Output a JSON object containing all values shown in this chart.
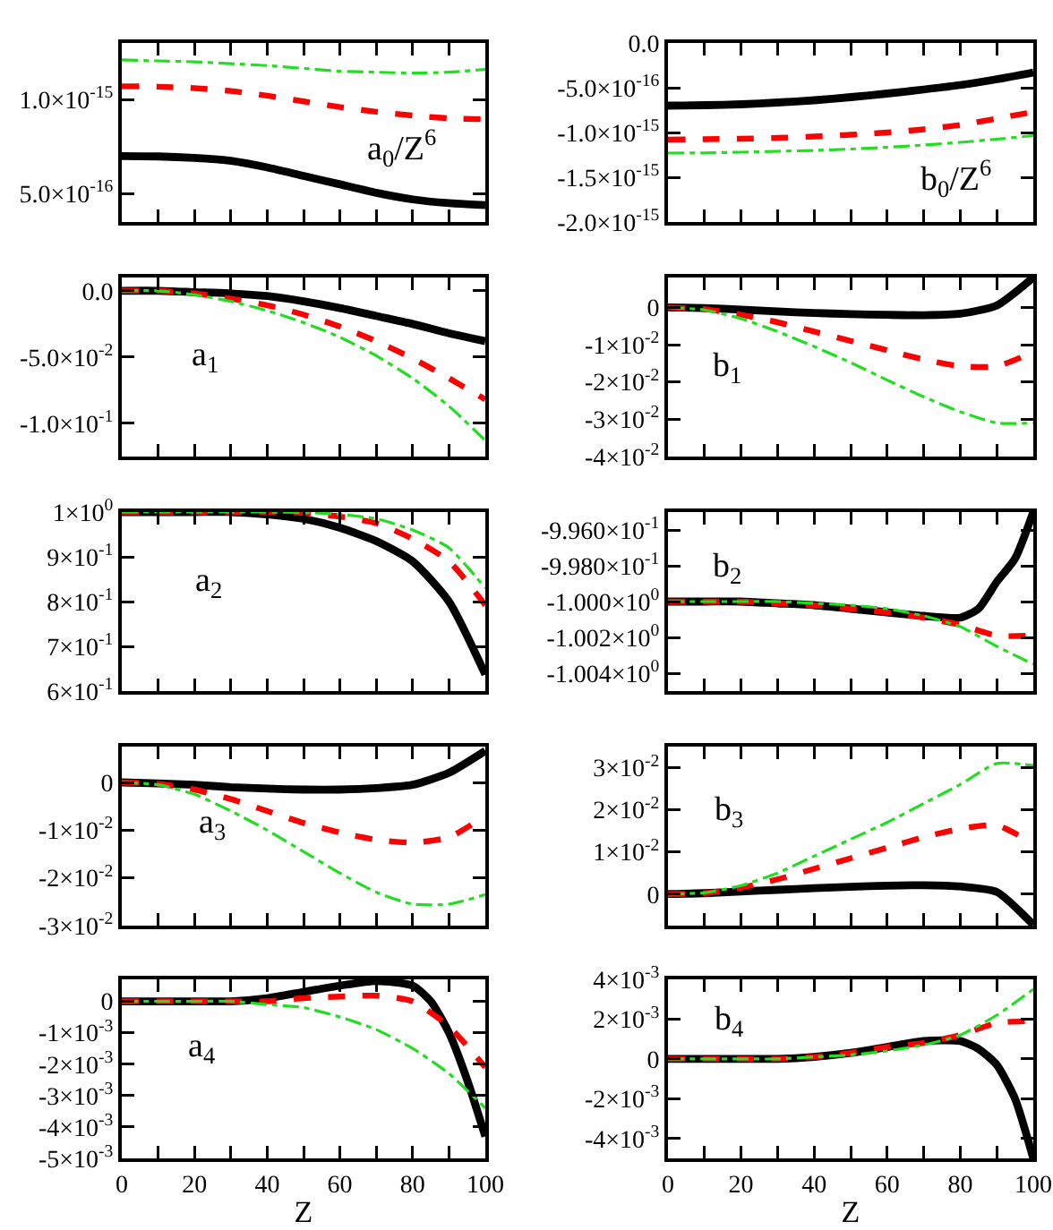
{
  "chart_data": [
    {
      "type": "line",
      "x": [
        0,
        10,
        20,
        30,
        40,
        50,
        60,
        70,
        80,
        90,
        100
      ],
      "xlim": [
        0,
        100
      ],
      "xticks": [
        0,
        {
          "value": 10,
          "label": null
        },
        20,
        {
          "value": 30,
          "label": null
        },
        40,
        {
          "value": 50,
          "label": null
        },
        60,
        {
          "value": 70,
          "label": null
        },
        80,
        {
          "value": 90,
          "label": null
        },
        100
      ],
      "tick_labels": "y",
      "ylim": [
        3.5e-16,
        1.3e-15
      ],
      "yticks": [
        {
          "value": 5e-16,
          "label": "5.0×10$^{-16}$"
        },
        {
          "value": 1e-15,
          "label": "1.0×10$^{-15}$"
        }
      ],
      "annotations": [
        "a$_{0}$/Z$^{6}$"
      ],
      "series": [
        {
          "color": "#000000",
          "line_style": "solid",
          "values": [
            7e-16,
            6.98e-16,
            6.9e-16,
            6.75e-16,
            6.4e-16,
            5.95e-16,
            5.5e-16,
            5.05e-16,
            4.7e-16,
            4.5e-16,
            4.4e-16
          ]
        },
        {
          "color": "#ff0000",
          "line_style": "dashed",
          "values": [
            1.07e-15,
            1.068e-15,
            1.06e-15,
            1.045e-15,
            1.02e-15,
            9.9e-16,
            9.6e-16,
            9.35e-16,
            9.15e-16,
            9e-16,
            8.95e-16
          ]
        },
        {
          "color": "#22dd22",
          "line_style": "dashdot",
          "values": [
            1.21e-15,
            1.205e-15,
            1.2e-15,
            1.19e-15,
            1.18e-15,
            1.165e-15,
            1.15e-15,
            1.145e-15,
            1.14e-15,
            1.145e-15,
            1.16e-15
          ]
        }
      ]
    },
    {
      "type": "line",
      "x": [
        0,
        10,
        20,
        30,
        40,
        50,
        60,
        70,
        80,
        90,
        100
      ],
      "xlim": [
        0,
        100
      ],
      "xticks": [
        0,
        {
          "value": 10,
          "label": null
        },
        20,
        {
          "value": 30,
          "label": null
        },
        40,
        {
          "value": 50,
          "label": null
        },
        60,
        {
          "value": 70,
          "label": null
        },
        80,
        {
          "value": 90,
          "label": null
        },
        100
      ],
      "tick_labels": "y",
      "ylim": [
        -2e-15,
        0
      ],
      "yticks": [
        {
          "value": -2e-15,
          "label": "-2.0×10$^{-15}$"
        },
        {
          "value": -1.5e-15,
          "label": "-1.5×10$^{-15}$"
        },
        {
          "value": -1e-15,
          "label": "-1.0×10$^{-15}$"
        },
        {
          "value": -5e-16,
          "label": "-5.0×10$^{-16}$"
        },
        {
          "value": 0,
          "label": "0.0"
        }
      ],
      "annotations": [
        "b$_{0}$/Z$^{6}$"
      ],
      "series": [
        {
          "color": "#000000",
          "line_style": "solid",
          "values": [
            -7e-16,
            -6.95e-16,
            -6.85e-16,
            -6.65e-16,
            -6.4e-16,
            -6.05e-16,
            -5.65e-16,
            -5.2e-16,
            -4.7e-16,
            -4.05e-16,
            -3.3e-16
          ]
        },
        {
          "color": "#ff0000",
          "line_style": "dashed",
          "values": [
            -1.08e-15,
            -1.075e-15,
            -1.07e-15,
            -1.06e-15,
            -1.045e-15,
            -1.025e-15,
            -1e-15,
            -9.65e-16,
            -9.15e-16,
            -8.45e-16,
            -7.7e-16
          ]
        },
        {
          "color": "#22dd22",
          "line_style": "dashdot",
          "values": [
            -1.23e-15,
            -1.228e-15,
            -1.22e-15,
            -1.21e-15,
            -1.2e-15,
            -1.185e-15,
            -1.165e-15,
            -1.14e-15,
            -1.11e-15,
            -1.075e-15,
            -1.035e-15
          ]
        }
      ]
    },
    {
      "type": "line",
      "x": [
        0,
        10,
        20,
        30,
        40,
        50,
        60,
        70,
        80,
        90,
        100
      ],
      "xlim": [
        0,
        100
      ],
      "xticks": [
        0,
        {
          "value": 10,
          "label": null
        },
        20,
        {
          "value": 30,
          "label": null
        },
        40,
        {
          "value": 50,
          "label": null
        },
        60,
        {
          "value": 70,
          "label": null
        },
        80,
        {
          "value": 90,
          "label": null
        },
        100
      ],
      "tick_labels": "y",
      "ylim": [
        -0.125,
        0.01
      ],
      "yticks": [
        {
          "value": -0.1,
          "label": "-1.0×10$^{-1}$"
        },
        {
          "value": -0.05,
          "label": "-5.0×10$^{-2}$"
        },
        {
          "value": 0,
          "label": "0.0"
        }
      ],
      "annotations": [
        "a$_{1}$"
      ],
      "series": [
        {
          "color": "#000000",
          "line_style": "solid",
          "values": [
            0,
            0,
            -0.001,
            -0.002,
            -0.004,
            -0.008,
            -0.013,
            -0.019,
            -0.025,
            -0.032,
            -0.038
          ]
        },
        {
          "color": "#ff0000",
          "line_style": "dashed",
          "values": [
            0,
            0,
            -0.002,
            -0.006,
            -0.011,
            -0.018,
            -0.027,
            -0.038,
            -0.051,
            -0.066,
            -0.082
          ]
        },
        {
          "color": "#22dd22",
          "line_style": "dashdot",
          "values": [
            0,
            0,
            -0.003,
            -0.008,
            -0.015,
            -0.024,
            -0.035,
            -0.049,
            -0.066,
            -0.087,
            -0.113
          ]
        }
      ]
    },
    {
      "type": "line",
      "x": [
        0,
        10,
        20,
        30,
        40,
        50,
        60,
        70,
        80,
        90,
        100
      ],
      "xlim": [
        0,
        100
      ],
      "xticks": [
        0,
        {
          "value": 10,
          "label": null
        },
        20,
        {
          "value": 30,
          "label": null
        },
        40,
        {
          "value": 50,
          "label": null
        },
        60,
        {
          "value": 70,
          "label": null
        },
        80,
        {
          "value": 90,
          "label": null
        },
        100
      ],
      "tick_labels": "y",
      "ylim": [
        -0.04,
        0.008
      ],
      "yticks": [
        {
          "value": -0.04,
          "label": "-4×10$^{-2}$"
        },
        {
          "value": -0.03,
          "label": "-3×10$^{-2}$"
        },
        {
          "value": -0.02,
          "label": "-2×10$^{-2}$"
        },
        {
          "value": -0.01,
          "label": "-1×10$^{-2}$"
        },
        {
          "value": 0,
          "label": "0"
        }
      ],
      "annotations": [
        "b$_{1}$"
      ],
      "series": [
        {
          "color": "#000000",
          "line_style": "solid",
          "values": [
            0,
            -0.0002,
            -0.0006,
            -0.0011,
            -0.0015,
            -0.0018,
            -0.002,
            -0.0021,
            -0.0017,
            0.0005,
            0.008
          ]
        },
        {
          "color": "#ff0000",
          "line_style": "dashed",
          "values": [
            0,
            -0.0005,
            -0.002,
            -0.004,
            -0.0065,
            -0.009,
            -0.0115,
            -0.014,
            -0.0158,
            -0.0158,
            -0.012
          ]
        },
        {
          "color": "#22dd22",
          "line_style": "dashdot",
          "values": [
            0,
            -0.0007,
            -0.003,
            -0.0065,
            -0.0105,
            -0.0148,
            -0.0195,
            -0.024,
            -0.028,
            -0.031,
            -0.031
          ]
        }
      ]
    },
    {
      "type": "line",
      "x": [
        0,
        10,
        20,
        30,
        40,
        50,
        60,
        70,
        80,
        90,
        100
      ],
      "xlim": [
        0,
        100
      ],
      "xticks": [
        0,
        {
          "value": 10,
          "label": null
        },
        20,
        {
          "value": 30,
          "label": null
        },
        40,
        {
          "value": 50,
          "label": null
        },
        60,
        {
          "value": 70,
          "label": null
        },
        80,
        {
          "value": 90,
          "label": null
        },
        100
      ],
      "tick_labels": "y",
      "ylim": [
        0.6,
        1.0
      ],
      "yticks": [
        {
          "value": 0.6,
          "label": "6×10$^{-1}$"
        },
        {
          "value": 0.7,
          "label": "7×10$^{-1}$"
        },
        {
          "value": 0.8,
          "label": "8×10$^{-1}$"
        },
        {
          "value": 0.9,
          "label": "9×10$^{-1}$"
        },
        {
          "value": 1,
          "label": "1×10$^{0}$"
        }
      ],
      "annotations": [
        "a$_{2}$"
      ],
      "series": [
        {
          "color": "#000000",
          "line_style": "solid",
          "values": [
            1,
            1,
            1,
            1,
            0.995,
            0.985,
            0.965,
            0.935,
            0.89,
            0.8,
            0.637
          ]
        },
        {
          "color": "#ff0000",
          "line_style": "dashed",
          "values": [
            1,
            1,
            1,
            1,
            1,
            0.998,
            0.99,
            0.975,
            0.94,
            0.89,
            0.792
          ]
        },
        {
          "color": "#22dd22",
          "line_style": "dashdot",
          "values": [
            1,
            1,
            1,
            1,
            1,
            0.999,
            0.995,
            0.985,
            0.96,
            0.92,
            0.83
          ]
        }
      ]
    },
    {
      "type": "line",
      "x": [
        0,
        10,
        20,
        30,
        40,
        50,
        60,
        70,
        80,
        90,
        100
      ],
      "xlim": [
        0,
        100
      ],
      "xticks": [
        0,
        {
          "value": 10,
          "label": null
        },
        20,
        {
          "value": 30,
          "label": null
        },
        40,
        {
          "value": 50,
          "label": null
        },
        60,
        {
          "value": 70,
          "label": null
        },
        80,
        {
          "value": 90,
          "label": null
        },
        100
      ],
      "tick_labels": "y",
      "ylim": [
        -1.005,
        -0.995
      ],
      "yticks": [
        {
          "value": -1.004,
          "label": "-1.004×10$^{0}$"
        },
        {
          "value": -1.002,
          "label": "-1.002×10$^{0}$"
        },
        {
          "value": -1.0,
          "label": "-1.000×10$^{0}$"
        },
        {
          "value": -0.998,
          "label": "-9.980×10$^{-1}$"
        },
        {
          "value": -0.996,
          "label": "-9.960×10$^{-1}$"
        }
      ],
      "annotations": [
        "b$_{2}$"
      ],
      "series": [
        {
          "color": "#000000",
          "line_style": "solid",
          "x": [
            0,
            10,
            20,
            30,
            40,
            50,
            60,
            70,
            80,
            85,
            90,
            95,
            100
          ],
          "values": [
            -1.0,
            -1.0,
            -1.0,
            -1.0001,
            -1.0002,
            -1.0004,
            -1.0006,
            -1.0008,
            -1.0009,
            -1.0004,
            -0.9989,
            -0.9976,
            -0.995
          ]
        },
        {
          "color": "#ff0000",
          "line_style": "dashed",
          "values": [
            -1.0,
            -1.0,
            -1.0,
            -1.0001,
            -1.0002,
            -1.0004,
            -1.0006,
            -1.0009,
            -1.0013,
            -1.0019,
            -1.0019
          ]
        },
        {
          "color": "#22dd22",
          "line_style": "dashdot",
          "values": [
            -1.0,
            -1.0,
            -1.0,
            -1.0,
            -1.0001,
            -1.0002,
            -1.0004,
            -1.0008,
            -1.0014,
            -1.0025,
            -1.0035
          ]
        }
      ]
    },
    {
      "type": "line",
      "x": [
        0,
        10,
        20,
        30,
        40,
        50,
        60,
        70,
        80,
        90,
        100
      ],
      "xlim": [
        0,
        100
      ],
      "xticks": [
        0,
        {
          "value": 10,
          "label": null
        },
        20,
        {
          "value": 30,
          "label": null
        },
        40,
        {
          "value": 50,
          "label": null
        },
        60,
        {
          "value": 70,
          "label": null
        },
        80,
        {
          "value": 90,
          "label": null
        },
        100
      ],
      "tick_labels": "y",
      "ylim": [
        -0.03,
        0.0075
      ],
      "yticks": [
        {
          "value": -0.03,
          "label": "-3×10$^{-2}$"
        },
        {
          "value": -0.02,
          "label": "-2×10$^{-2}$"
        },
        {
          "value": -0.01,
          "label": "-1×10$^{-2}$"
        },
        {
          "value": 0,
          "label": "0"
        }
      ],
      "annotations": [
        "a$_{3}$"
      ],
      "series": [
        {
          "color": "#000000",
          "line_style": "solid",
          "values": [
            0,
            -0.0002,
            -0.0005,
            -0.001,
            -0.0013,
            -0.0015,
            -0.0015,
            -0.0012,
            -0.0005,
            0.002,
            0.0066
          ]
        },
        {
          "color": "#ff0000",
          "line_style": "dashed",
          "values": [
            0,
            -0.0003,
            -0.0015,
            -0.0035,
            -0.006,
            -0.0085,
            -0.0105,
            -0.012,
            -0.0126,
            -0.0115,
            -0.007
          ]
        },
        {
          "color": "#22dd22",
          "line_style": "dashdot",
          "values": [
            0,
            -0.0005,
            -0.0025,
            -0.006,
            -0.01,
            -0.0145,
            -0.019,
            -0.023,
            -0.0255,
            -0.0255,
            -0.0235
          ]
        }
      ]
    },
    {
      "type": "line",
      "x": [
        0,
        10,
        20,
        30,
        40,
        50,
        60,
        70,
        80,
        90,
        100
      ],
      "xlim": [
        0,
        100
      ],
      "xticks": [
        0,
        {
          "value": 10,
          "label": null
        },
        20,
        {
          "value": 30,
          "label": null
        },
        40,
        {
          "value": 50,
          "label": null
        },
        60,
        {
          "value": 70,
          "label": null
        },
        80,
        {
          "value": 90,
          "label": null
        },
        100
      ],
      "tick_labels": "y",
      "ylim": [
        -0.0075,
        0.035
      ],
      "yticks": [
        {
          "value": 0,
          "label": "0"
        },
        {
          "value": 0.01,
          "label": "1×10$^{-2}$"
        },
        {
          "value": 0.02,
          "label": "2×10$^{-2}$"
        },
        {
          "value": 0.03,
          "label": "3×10$^{-2}$"
        }
      ],
      "annotations": [
        "b$_{3}$"
      ],
      "series": [
        {
          "color": "#000000",
          "line_style": "solid",
          "values": [
            0,
            0.0002,
            0.0006,
            0.001,
            0.0014,
            0.0017,
            0.002,
            0.0021,
            0.0018,
            0.0005,
            -0.0073
          ]
        },
        {
          "color": "#ff0000",
          "line_style": "dashed",
          "values": [
            0,
            0.0002,
            0.0015,
            0.0035,
            0.006,
            0.0085,
            0.011,
            0.0135,
            0.0155,
            0.0163,
            0.012
          ]
        },
        {
          "color": "#22dd22",
          "line_style": "dashdot",
          "values": [
            0,
            0.0003,
            0.002,
            0.005,
            0.009,
            0.013,
            0.017,
            0.0215,
            0.026,
            0.031,
            0.0305
          ]
        }
      ]
    },
    {
      "type": "line",
      "x": [
        0,
        10,
        20,
        30,
        40,
        50,
        60,
        70,
        80,
        90,
        100
      ],
      "xlim": [
        0,
        100
      ],
      "xticks": [
        0,
        {
          "value": 10,
          "label": null
        },
        20,
        {
          "value": 30,
          "label": null
        },
        40,
        {
          "value": 50,
          "label": null
        },
        60,
        {
          "value": 70,
          "label": null
        },
        80,
        {
          "value": 90,
          "label": null
        },
        100
      ],
      "xlabel": "Z",
      "ylim": [
        -0.005,
        0.0007
      ],
      "yticks": [
        {
          "value": -0.005,
          "label": "-5×10$^{-3}$"
        },
        {
          "value": -0.004,
          "label": "-4×10$^{-3}$"
        },
        {
          "value": -0.003,
          "label": "-3×10$^{-3}$"
        },
        {
          "value": -0.002,
          "label": "-2×10$^{-3}$"
        },
        {
          "value": -0.001,
          "label": "-1×10$^{-3}$"
        },
        {
          "value": 0,
          "label": "0"
        }
      ],
      "annotations": [
        "a$_{4}$"
      ],
      "series": [
        {
          "color": "#000000",
          "line_style": "solid",
          "x": [
            0,
            10,
            20,
            30,
            40,
            50,
            60,
            70,
            80,
            85,
            90,
            95,
            100
          ],
          "values": [
            0,
            0,
            0,
            0,
            0.0001,
            0.0003,
            0.0005,
            0.00065,
            0.0005,
            0,
            -0.001,
            -0.0025,
            -0.0043
          ]
        },
        {
          "color": "#ff0000",
          "line_style": "dashed",
          "values": [
            0,
            0,
            0,
            0,
            0,
            0.0001,
            0.00015,
            0.00018,
            0,
            -0.0008,
            -0.0021
          ]
        },
        {
          "color": "#22dd22",
          "line_style": "dashdot",
          "values": [
            0,
            0,
            0,
            0,
            -0.0001,
            -0.0002,
            -0.0005,
            -0.0009,
            -0.0015,
            -0.0023,
            -0.0034
          ]
        }
      ]
    },
    {
      "type": "line",
      "x": [
        0,
        10,
        20,
        30,
        40,
        50,
        60,
        70,
        80,
        90,
        100
      ],
      "xlim": [
        0,
        100
      ],
      "xticks": [
        0,
        {
          "value": 10,
          "label": null
        },
        20,
        {
          "value": 30,
          "label": null
        },
        40,
        {
          "value": 50,
          "label": null
        },
        60,
        {
          "value": 70,
          "label": null
        },
        80,
        {
          "value": 90,
          "label": null
        },
        100
      ],
      "xlabel": "Z",
      "ylim": [
        -0.005,
        0.004
      ],
      "yticks": [
        {
          "value": -0.004,
          "label": "-4×10$^{-3}$"
        },
        {
          "value": -0.002,
          "label": "-2×10$^{-3}$"
        },
        {
          "value": 0,
          "label": "0"
        },
        {
          "value": 0.002,
          "label": "2×10$^{-3}$"
        },
        {
          "value": 0.004,
          "label": "4×10$^{-3}$"
        }
      ],
      "annotations": [
        "b$_{4}$"
      ],
      "series": [
        {
          "color": "#000000",
          "line_style": "solid",
          "x": [
            0,
            10,
            20,
            30,
            40,
            50,
            60,
            70,
            80,
            85,
            90,
            95,
            100
          ],
          "values": [
            0,
            0,
            0,
            0,
            0.0001,
            0.0003,
            0.0006,
            0.0009,
            0.0009,
            0.0005,
            -0.0003,
            -0.002,
            -0.005
          ]
        },
        {
          "color": "#ff0000",
          "line_style": "dashed",
          "values": [
            0,
            0,
            0,
            0,
            0.0001,
            0.0003,
            0.0006,
            0.0008,
            0.0012,
            0.0018,
            0.0019
          ]
        },
        {
          "color": "#22dd22",
          "line_style": "dashdot",
          "values": [
            0,
            0,
            0,
            0,
            0.0001,
            0.0002,
            0.0004,
            0.0007,
            0.0012,
            0.0022,
            0.0035
          ]
        }
      ]
    }
  ]
}
